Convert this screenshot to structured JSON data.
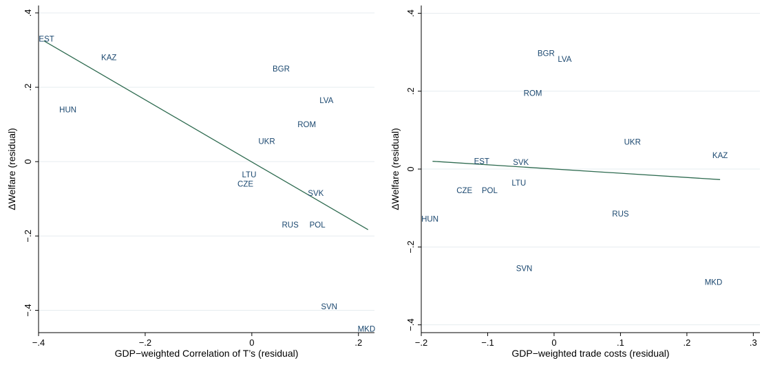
{
  "chart_data": [
    {
      "type": "scatter",
      "xlabel": "GDP−weighted Correlation of T’s (residual)",
      "ylabel": "ΔWelfare (residual)",
      "xlim": [
        -0.4,
        0.23
      ],
      "ylim": [
        -0.46,
        0.42
      ],
      "xticks": [
        -0.4,
        -0.2,
        0,
        0.2
      ],
      "xtick_labels": [
        "−.4",
        "−.2",
        "0",
        ".2"
      ],
      "yticks": [
        -0.4,
        -0.2,
        0,
        0.2,
        0.4
      ],
      "ytick_labels": [
        "−.4",
        "−.2",
        "0",
        ".2",
        ".4"
      ],
      "grid": true,
      "marker_label_color": "#1a476f",
      "fit_color": "#2d6a4f",
      "points": [
        {
          "label": "EST",
          "x": -0.385,
          "y": 0.33
        },
        {
          "label": "KAZ",
          "x": -0.268,
          "y": 0.28
        },
        {
          "label": "BGR",
          "x": 0.055,
          "y": 0.25
        },
        {
          "label": "HUN",
          "x": -0.345,
          "y": 0.14
        },
        {
          "label": "LVA",
          "x": 0.14,
          "y": 0.165
        },
        {
          "label": "ROM",
          "x": 0.103,
          "y": 0.1
        },
        {
          "label": "UKR",
          "x": 0.028,
          "y": 0.055
        },
        {
          "label": "LTU",
          "x": -0.005,
          "y": -0.035
        },
        {
          "label": "CZE",
          "x": -0.012,
          "y": -0.06
        },
        {
          "label": "SVK",
          "x": 0.12,
          "y": -0.085
        },
        {
          "label": "RUS",
          "x": 0.072,
          "y": -0.17
        },
        {
          "label": "POL",
          "x": 0.123,
          "y": -0.17
        },
        {
          "label": "SVN",
          "x": 0.145,
          "y": -0.39
        },
        {
          "label": "MKD",
          "x": 0.215,
          "y": -0.45
        }
      ],
      "fit_line": {
        "x": [
          -0.39,
          0.218
        ],
        "y": [
          0.325,
          -0.183
        ]
      }
    },
    {
      "type": "scatter",
      "xlabel": "GDP−weighted trade costs (residual)",
      "ylabel": "ΔWelfare (residual)",
      "xlim": [
        -0.2,
        0.31
      ],
      "ylim": [
        -0.42,
        0.42
      ],
      "xticks": [
        -0.2,
        -0.1,
        0,
        0.1,
        0.2,
        0.3
      ],
      "xtick_labels": [
        "−.2",
        "−.1",
        "0",
        ".1",
        ".2",
        ".3"
      ],
      "yticks": [
        -0.4,
        -0.2,
        0,
        0.2,
        0.4
      ],
      "ytick_labels": [
        "−.4",
        "−.2",
        "0",
        ".2",
        ".4"
      ],
      "grid": true,
      "marker_label_color": "#1a476f",
      "fit_color": "#2d6a4f",
      "points": [
        {
          "label": "BGR",
          "x": -0.012,
          "y": 0.297
        },
        {
          "label": "LVA",
          "x": 0.016,
          "y": 0.282
        },
        {
          "label": "ROM",
          "x": -0.032,
          "y": 0.195
        },
        {
          "label": "UKR",
          "x": 0.118,
          "y": 0.07
        },
        {
          "label": "KAZ",
          "x": 0.25,
          "y": 0.035
        },
        {
          "label": "EST",
          "x": -0.109,
          "y": 0.02
        },
        {
          "label": "SVK",
          "x": -0.05,
          "y": 0.018
        },
        {
          "label": "LTU",
          "x": -0.053,
          "y": -0.035
        },
        {
          "label": "CZE",
          "x": -0.135,
          "y": -0.055
        },
        {
          "label": "POL",
          "x": -0.097,
          "y": -0.055
        },
        {
          "label": "HUN",
          "x": -0.187,
          "y": -0.128
        },
        {
          "label": "RUS",
          "x": 0.1,
          "y": -0.115
        },
        {
          "label": "SVN",
          "x": -0.045,
          "y": -0.255
        },
        {
          "label": "MKD",
          "x": 0.24,
          "y": -0.29
        }
      ],
      "fit_line": {
        "x": [
          -0.183,
          0.25
        ],
        "y": [
          0.02,
          -0.027
        ]
      }
    }
  ]
}
